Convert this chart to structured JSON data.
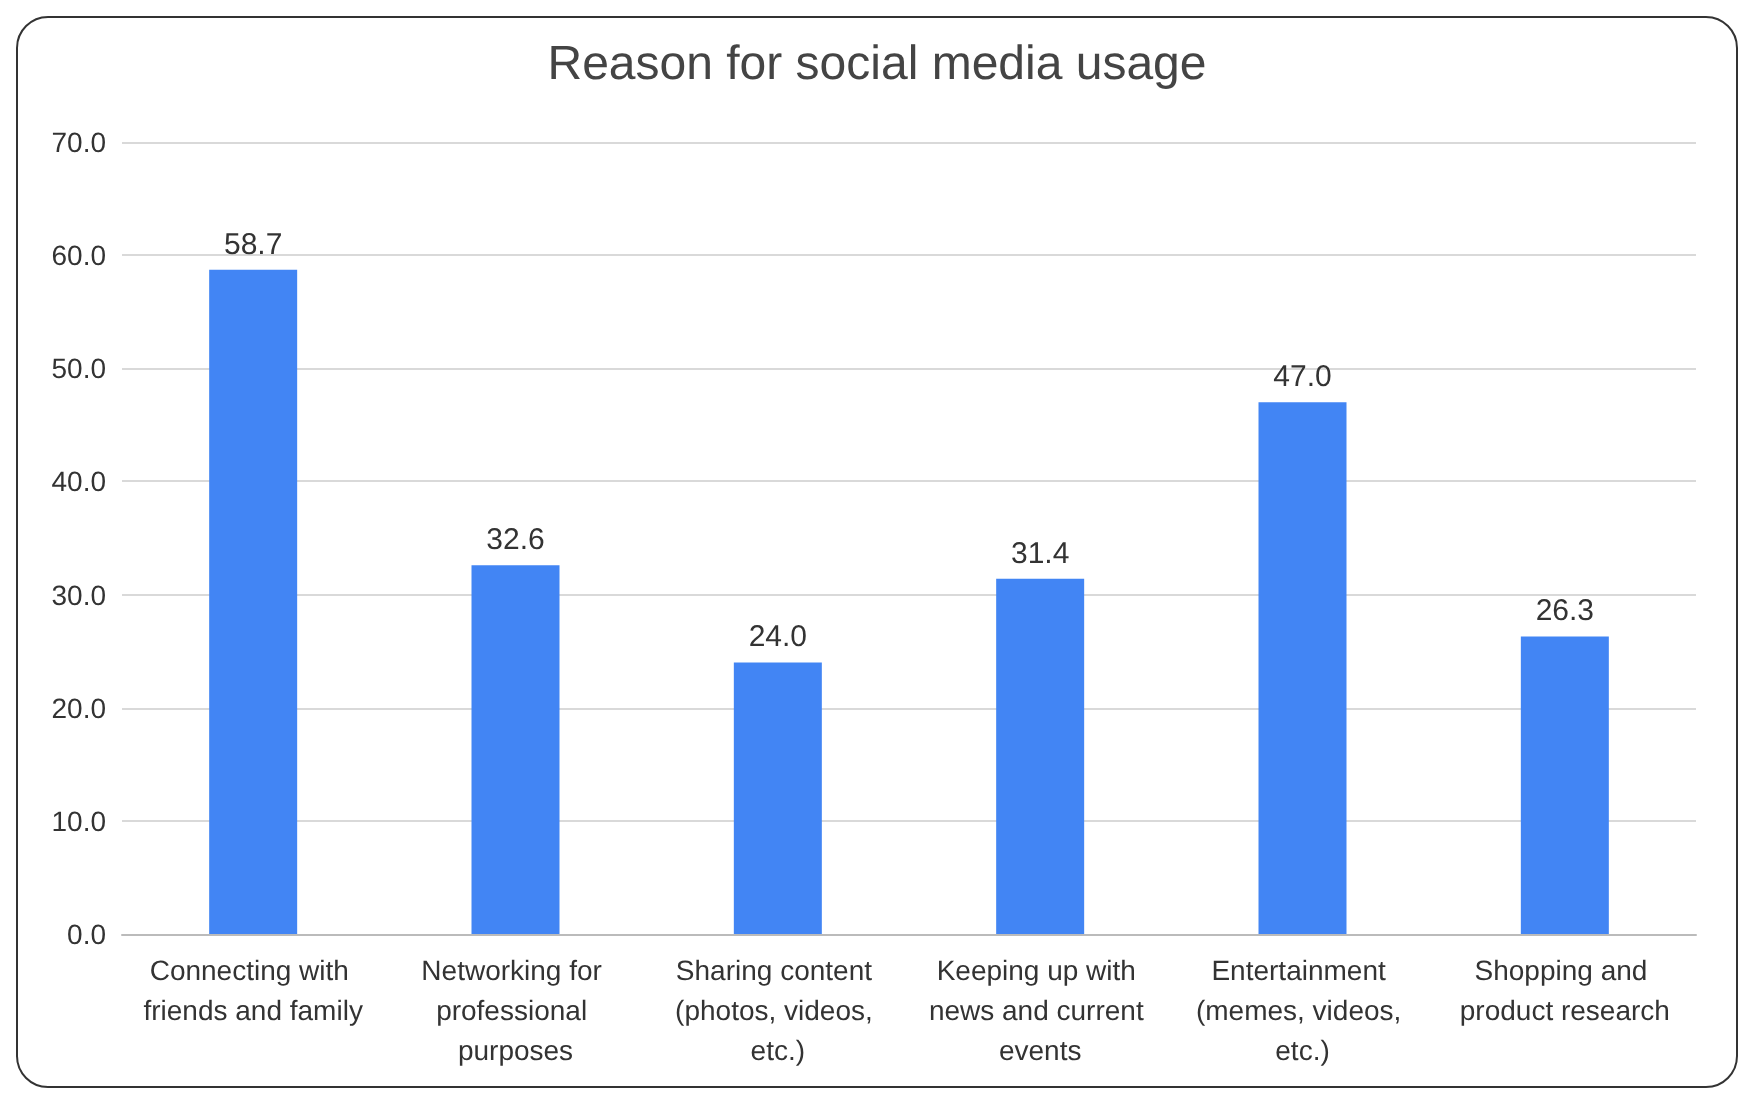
{
  "chart_data": {
    "type": "bar",
    "title": "Reason for social media usage",
    "categories": [
      "Connecting with friends and family",
      "Networking for professional purposes",
      "Sharing content (photos, videos, etc.)",
      "Keeping up with news and current events",
      "Entertainment (memes, videos, etc.)",
      "Shopping and product research"
    ],
    "values": [
      58.7,
      32.6,
      24.0,
      31.4,
      47.0,
      26.3
    ],
    "value_labels": [
      "58.7",
      "32.6",
      "24.0",
      "31.4",
      "47.0",
      "26.3"
    ],
    "color": "#4285f4",
    "ylim": [
      0,
      70
    ],
    "yticks": [
      {
        "value": 0,
        "label": "0.0"
      },
      {
        "value": 10,
        "label": "10.0"
      },
      {
        "value": 20,
        "label": "20.0"
      },
      {
        "value": 30,
        "label": "30.0"
      },
      {
        "value": 40,
        "label": "40.0"
      },
      {
        "value": 50,
        "label": "50.0"
      },
      {
        "value": 60,
        "label": "60.0"
      },
      {
        "value": 70,
        "label": "70.0"
      }
    ],
    "grid": "y"
  }
}
